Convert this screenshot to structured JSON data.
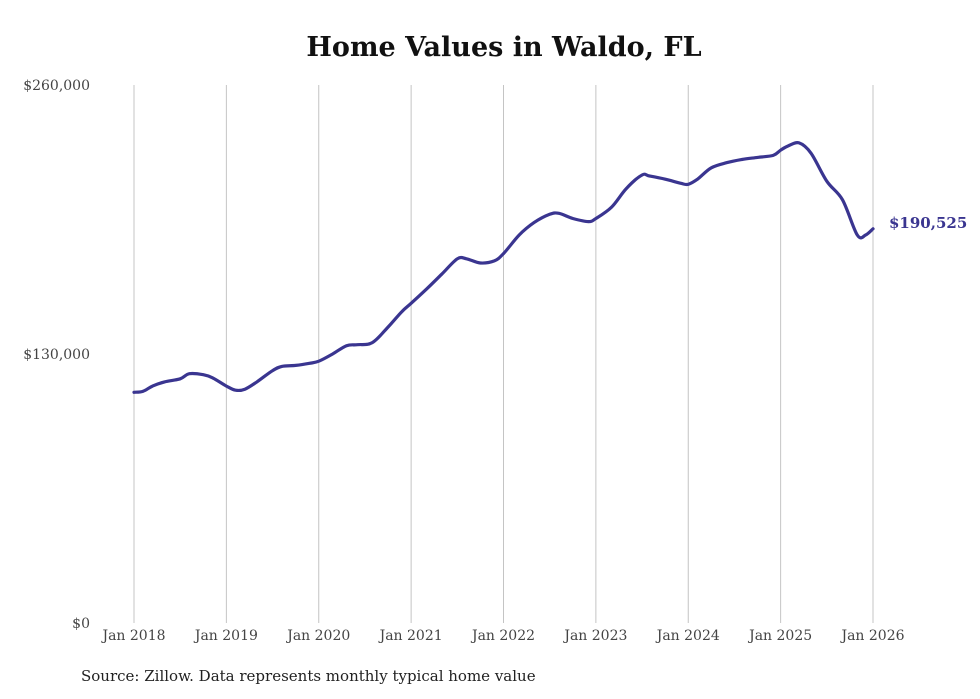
{
  "chart_data": {
    "type": "line",
    "title": "Home Values in Waldo, FL",
    "source": "Source: Zillow. Data represents monthly typical home value",
    "ylim": [
      0,
      260000
    ],
    "y_ticks": [
      {
        "value": 0,
        "label": "$0"
      },
      {
        "value": 130000,
        "label": "$130,000"
      },
      {
        "value": 260000,
        "label": "$260,000"
      }
    ],
    "x_ticks": [
      {
        "value": 2018,
        "label": "Jan 2018"
      },
      {
        "value": 2019,
        "label": "Jan 2019"
      },
      {
        "value": 2020,
        "label": "Jan 2020"
      },
      {
        "value": 2021,
        "label": "Jan 2021"
      },
      {
        "value": 2022,
        "label": "Jan 2022"
      },
      {
        "value": 2023,
        "label": "Jan 2023"
      },
      {
        "value": 2024,
        "label": "Jan 2024"
      },
      {
        "value": 2025,
        "label": "Jan 2025"
      },
      {
        "value": 2026,
        "label": "Jan 2026"
      }
    ],
    "xlim": [
      2018,
      2026
    ],
    "grid": "vertical",
    "series": [
      {
        "name": "Typical home value",
        "color": "#3a3590",
        "end_label": "$190,525",
        "x": [
          2018.0,
          2018.1,
          2018.2,
          2018.33,
          2018.5,
          2018.6,
          2018.75,
          2018.85,
          2019.0,
          2019.1,
          2019.2,
          2019.33,
          2019.5,
          2019.6,
          2019.75,
          2019.9,
          2020.0,
          2020.15,
          2020.3,
          2020.42,
          2020.58,
          2020.75,
          2020.9,
          2021.0,
          2021.17,
          2021.33,
          2021.5,
          2021.6,
          2021.75,
          2021.9,
          2022.0,
          2022.17,
          2022.33,
          2022.5,
          2022.6,
          2022.75,
          2022.92,
          2023.0,
          2023.17,
          2023.33,
          2023.5,
          2023.58,
          2023.75,
          2023.92,
          2024.0,
          2024.1,
          2024.25,
          2024.42,
          2024.58,
          2024.75,
          2024.92,
          2025.0,
          2025.08,
          2025.2,
          2025.33,
          2025.5,
          2025.67,
          2025.83,
          2025.92,
          2026.0
        ],
        "values": [
          111500,
          112000,
          114500,
          116500,
          118000,
          120500,
          120000,
          118500,
          114500,
          112500,
          113000,
          116500,
          122000,
          124000,
          124500,
          125500,
          126500,
          130000,
          134000,
          134500,
          135500,
          143000,
          150500,
          154500,
          161500,
          168500,
          176000,
          176000,
          174000,
          175000,
          178500,
          187500,
          193500,
          197500,
          198000,
          195500,
          194000,
          195500,
          201000,
          210000,
          216500,
          216000,
          214500,
          212500,
          212000,
          214500,
          220000,
          222500,
          224000,
          225000,
          226000,
          228500,
          230500,
          232000,
          227000,
          213500,
          204500,
          187500,
          187500,
          190500
        ]
      }
    ]
  }
}
